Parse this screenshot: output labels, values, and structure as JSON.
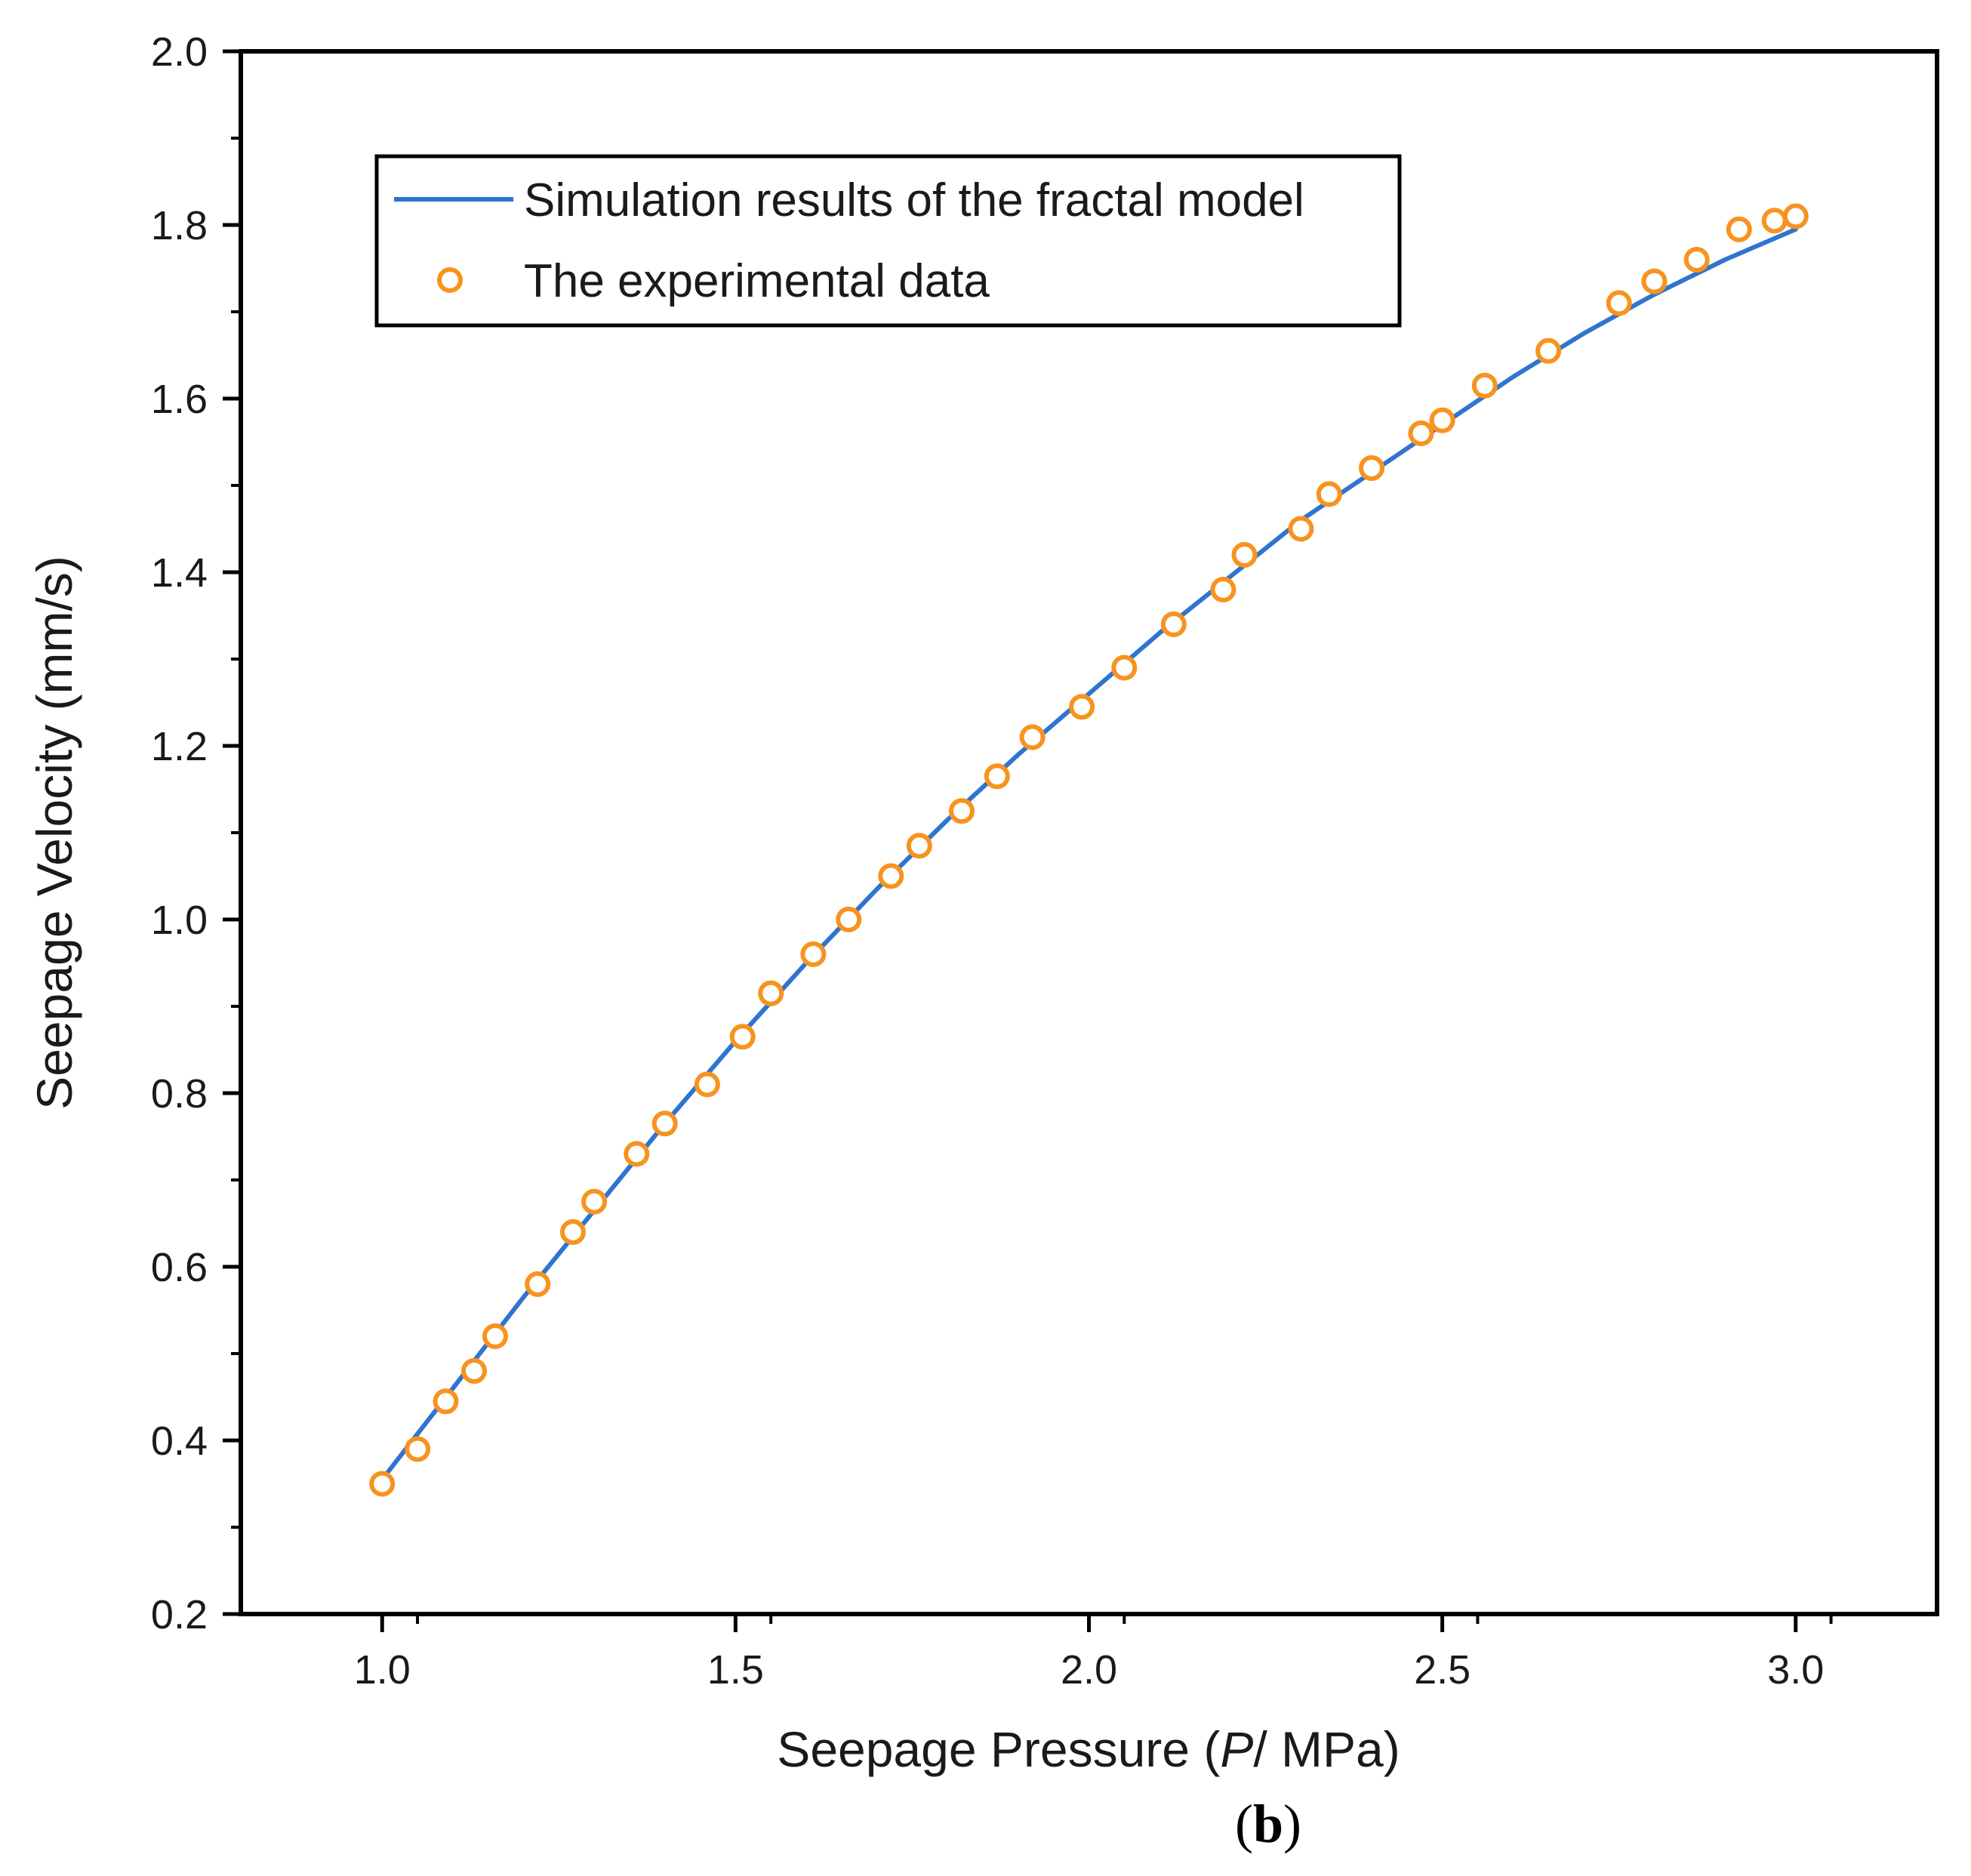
{
  "chart_data": {
    "type": "line",
    "xlabel": {
      "prefix": "Seepage Pressure (",
      "var": "P",
      "suffix": "/ MPa)"
    },
    "ylabel": "Seepage Velocity (mm/s)",
    "xlim": [
      0.8,
      3.2
    ],
    "ylim": [
      0.2,
      2.0
    ],
    "x_ticks": [
      1.0,
      1.5,
      2.0,
      2.5,
      3.0
    ],
    "x_tick_labels": [
      "1.0",
      "1.5",
      "2.0",
      "2.5",
      "3.0"
    ],
    "y_ticks": [
      0.2,
      0.4,
      0.6,
      0.8,
      1.0,
      1.2,
      1.4,
      1.6,
      1.8,
      2.0
    ],
    "y_tick_labels": [
      "0.2",
      "0.4",
      "0.6",
      "0.8",
      "1.0",
      "1.2",
      "1.4",
      "1.6",
      "1.8",
      "2.0"
    ],
    "legend": {
      "position": "top-left",
      "entries": [
        {
          "label": "Simulation results of the fractal model",
          "style": "line"
        },
        {
          "label": "The experimental data",
          "style": "marker"
        }
      ]
    },
    "series": [
      {
        "name": "Simulation results of the fractal model",
        "kind": "line",
        "color": "#2f74d0",
        "x": [
          1.0,
          1.1,
          1.2,
          1.3,
          1.4,
          1.5,
          1.6,
          1.7,
          1.8,
          1.9,
          2.0,
          2.1,
          2.2,
          2.3,
          2.4,
          2.5,
          2.6,
          2.7,
          2.8,
          2.9,
          3.0
        ],
        "y": [
          0.355,
          0.46,
          0.565,
          0.665,
          0.765,
          0.86,
          0.95,
          1.035,
          1.115,
          1.19,
          1.26,
          1.33,
          1.395,
          1.46,
          1.515,
          1.57,
          1.625,
          1.675,
          1.72,
          1.76,
          1.795
        ]
      },
      {
        "name": "The experimental data",
        "kind": "scatter",
        "color": "#f7931e",
        "x": [
          1.0,
          1.05,
          1.09,
          1.13,
          1.16,
          1.22,
          1.27,
          1.3,
          1.36,
          1.4,
          1.46,
          1.51,
          1.55,
          1.61,
          1.66,
          1.72,
          1.76,
          1.82,
          1.87,
          1.92,
          1.99,
          2.05,
          2.12,
          2.19,
          2.22,
          2.3,
          2.34,
          2.4,
          2.47,
          2.5,
          2.56,
          2.65,
          2.75,
          2.8,
          2.86,
          2.92,
          2.97,
          3.0
        ],
        "y": [
          0.35,
          0.39,
          0.445,
          0.48,
          0.52,
          0.58,
          0.64,
          0.675,
          0.73,
          0.765,
          0.81,
          0.865,
          0.915,
          0.96,
          1.0,
          1.05,
          1.085,
          1.125,
          1.165,
          1.21,
          1.245,
          1.29,
          1.34,
          1.38,
          1.42,
          1.45,
          1.49,
          1.52,
          1.56,
          1.575,
          1.615,
          1.655,
          1.71,
          1.735,
          1.76,
          1.795,
          1.805,
          1.81
        ]
      }
    ],
    "grid": false,
    "panel_label": "b"
  }
}
